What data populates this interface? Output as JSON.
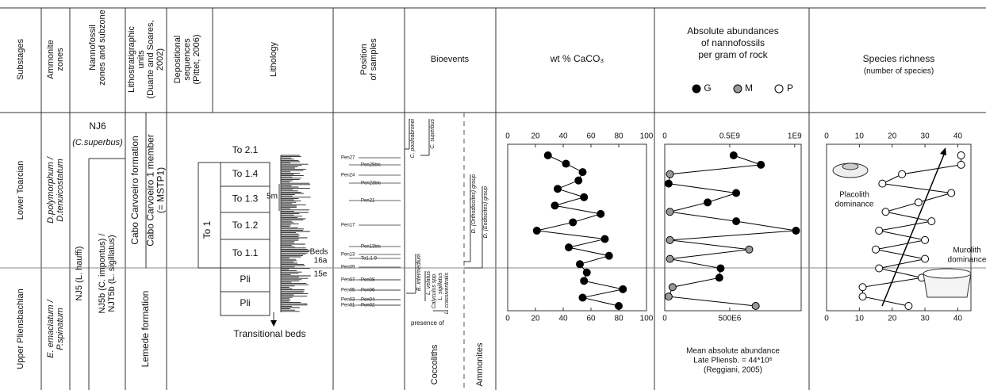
{
  "header": {
    "substages": "Substages",
    "ammonite_zones": [
      "Ammonite",
      "zones"
    ],
    "nannofossil_zones": [
      "Nannofossil",
      "zones and subzone"
    ],
    "lithostratigraphic_units": [
      "Lithostratigraphic",
      "units",
      "(Duarte and Soares,",
      "2002)"
    ],
    "depositional_sequences": [
      "Depositional",
      "sequences",
      "(Pittet, 2006)"
    ],
    "lithology": "Lithology",
    "position_of_samples": [
      "Position",
      "of samples"
    ],
    "bioevents": "Bioevents"
  },
  "substages": [
    "Lower Toarcian",
    "Upper Pliensbachian"
  ],
  "ammonite_zones": [
    [
      "D.polymorphum /",
      "D.tenuicostatum"
    ],
    [
      "E. emaciatum /",
      "P.spinatum"
    ]
  ],
  "nannofossil_zones": {
    "nj6": "NJ6",
    "nj6_marker": "(C.superbus)",
    "nj5": "NJ5 (L. hauffi)",
    "nj5b": [
      "NJ5b (C. impontus) /",
      "NJT5b (L. sigillatus)"
    ]
  },
  "lithostratigraphy": {
    "formation_upper": "Cabo Carvoeiro formation",
    "member": [
      "Cabo Carvoeiro 1 member",
      "(= MSTP1)"
    ],
    "formation_lower": "Lemede formation"
  },
  "sequences": {
    "main": "To 1",
    "units": [
      "To 2.1",
      "To 1.4",
      "To 1.3",
      "To 1.2",
      "To 1.1",
      "Pli",
      "Pli"
    ]
  },
  "lithology": {
    "scale": "5m",
    "beds": "Beds",
    "bed_a": "16a",
    "bed_b": "15e",
    "transitional": "Transitional beds"
  },
  "samples": [
    "Pen27",
    "Pen25bis",
    "Pen24",
    "Pen23bis",
    "Pen21",
    "Pen17",
    "Pen13bis",
    "Pen13",
    "To1.1-9",
    "Pen09",
    "Pen07",
    "Pen08",
    "Pen05",
    "Pen06",
    "Pen03",
    "Pen04",
    "Pen01",
    "Pen02"
  ],
  "bioevents": {
    "c_poulnabronei": "C. poulnabronei",
    "c_superbus": "C. superbus",
    "d_orthodiscites": "D. (Orthodiscites) group",
    "d_eodiscites": "D. (Eodiscites) group",
    "b_intermedium": "B. intermedium",
    "l_velatus": "L. velatus",
    "calyculus": [
      "Calyculus spp.",
      "L. sigillatus",
      "L. crassiventralis"
    ],
    "presence": "presence of",
    "coccoliths": "Coccoliths",
    "ammonites": "Ammonites"
  },
  "chart_data": [
    {
      "type": "line",
      "title": "wt % CaCO₃",
      "color": "#000000",
      "values": [
        29,
        42,
        54,
        51,
        36,
        55,
        34,
        67,
        47,
        21,
        70,
        44,
        73,
        52,
        57,
        55,
        83,
        54,
        80
      ],
      "xlim": [
        0,
        100
      ],
      "xticks": [
        0,
        20,
        40,
        60,
        80,
        100
      ]
    },
    {
      "type": "line",
      "title": [
        "Absolute abundances",
        "of nannofossils",
        "per gram of rock"
      ],
      "legend": [
        {
          "name": "G",
          "color": "#000000"
        },
        {
          "name": "M",
          "color": "#999999"
        },
        {
          "name": "P",
          "color": "#ffffff"
        }
      ],
      "values": [
        530000000,
        740000000,
        40000000,
        30000000,
        550000000,
        330000000,
        40000000,
        550000000,
        1010000000,
        40000000,
        650000000,
        40000000,
        430000000,
        420000000,
        60000000,
        30000000,
        700000000
      ],
      "point_colors": [
        "#000000",
        "#000000",
        "#999999",
        "#000000",
        "#000000",
        "#000000",
        "#999999",
        "#000000",
        "#000000",
        "#999999",
        "#999999",
        "#999999",
        "#000000",
        "#000000",
        "#999999",
        "#999999",
        "#999999"
      ],
      "xlim": [
        0,
        1050000000
      ],
      "xticks": [
        0,
        {
          "value": 500000000,
          "label": "0.5E9"
        },
        {
          "value": 1000000000,
          "label": "1E9"
        }
      ],
      "xticks_bottom": [
        0,
        {
          "value": 500000000,
          "label": "500E6"
        }
      ],
      "annotation": [
        "Mean absolute abundance",
        "Late Pliensb. = 44*10⁶",
        "(Reggiani, 2005)"
      ]
    },
    {
      "type": "line",
      "title": "Species richness",
      "subtitle": "(number of species)",
      "marker_fill": "#ffffff",
      "values": [
        41,
        41,
        23,
        17,
        38,
        28,
        18,
        32,
        16,
        30,
        15,
        30,
        16,
        29,
        11,
        11,
        25
      ],
      "xlim": [
        0,
        44
      ],
      "xticks": [
        0,
        10,
        20,
        30,
        40
      ],
      "annotations": [
        [
          "Placolith",
          "dominance"
        ],
        [
          "Murolith",
          "dominance"
        ]
      ]
    }
  ]
}
